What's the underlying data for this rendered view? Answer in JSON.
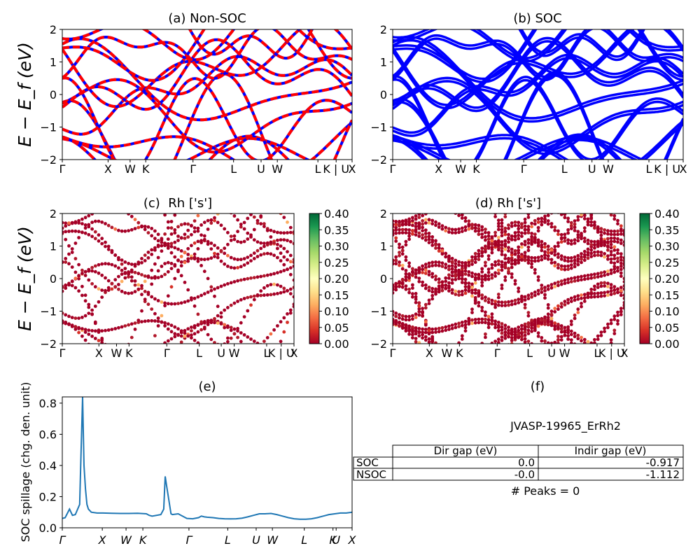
{
  "figure": {
    "ylabel_energy": "E − E_f (eV)",
    "panel_e_ylabel": "SOC spillage (chg. den. unit)",
    "band_yticks": [
      "−2",
      "−1",
      "0",
      "1",
      "2"
    ],
    "kpath_labels": [
      "Γ",
      "X",
      "W",
      "K",
      "Γ",
      "L",
      "U",
      "W",
      "L",
      "K | U",
      "X"
    ],
    "spillage_xtick_labels": [
      "Γ",
      "X",
      "W",
      "K",
      "Γ",
      "L",
      "U",
      "W",
      "L",
      "K",
      "U",
      "X"
    ],
    "spillage_yticks": [
      "0.0",
      "0.2",
      "0.4",
      "0.6",
      "0.8"
    ],
    "colorbar_ticks": [
      "0.00",
      "0.05",
      "0.10",
      "0.15",
      "0.20",
      "0.25",
      "0.30",
      "0.35",
      "0.40"
    ]
  },
  "chart_data": [
    {
      "panel": "a",
      "type": "line",
      "title": "(a) Non-SOC",
      "ylabel": "E − E_f (eV)",
      "ylim": [
        -2,
        2
      ],
      "x_ticks": [
        "Γ",
        "X",
        "W",
        "K",
        "Γ",
        "L",
        "U",
        "W",
        "L",
        "K | U",
        "X"
      ],
      "series_colors": [
        "#0000ff",
        "#ff0000"
      ],
      "style": "blue solid bands overlaid with red dashed bands"
    },
    {
      "panel": "b",
      "type": "line",
      "title": "(b) SOC",
      "ylim": [
        -2,
        2
      ],
      "x_ticks": [
        "Γ",
        "X",
        "W",
        "K",
        "Γ",
        "L",
        "U",
        "W",
        "L",
        "K | U",
        "X"
      ],
      "series_colors": [
        "#0000ff"
      ]
    },
    {
      "panel": "c",
      "type": "scatter",
      "title": "(c)  Rh ['s']",
      "ylabel": "E − E_f (eV)",
      "ylim": [
        -2,
        2
      ],
      "x_ticks": [
        "Γ",
        "X",
        "W",
        "K",
        "Γ",
        "L",
        "U",
        "W",
        "L",
        "K | U",
        "X"
      ],
      "colorbar": {
        "min": 0.0,
        "max": 0.4,
        "colormap": "RdYlGn"
      }
    },
    {
      "panel": "d",
      "type": "scatter",
      "title": "(d) Rh ['s']",
      "ylim": [
        -2,
        2
      ],
      "x_ticks": [
        "Γ",
        "X",
        "W",
        "K",
        "Γ",
        "L",
        "U",
        "W",
        "L",
        "K | U",
        "X"
      ],
      "colorbar": {
        "min": 0.0,
        "max": 0.4,
        "colormap": "RdYlGn"
      }
    },
    {
      "panel": "e",
      "type": "line",
      "title": "(e)",
      "ylabel": "SOC spillage (chg. den. unit)",
      "ylim": [
        0,
        0.84
      ],
      "x_ticks": [
        "Γ",
        "X",
        "W",
        "K",
        "Γ",
        "L",
        "U",
        "W",
        "L",
        "K",
        "U",
        "X"
      ],
      "color": "#1f77b4",
      "x": [
        0,
        0.01,
        0.025,
        0.035,
        0.045,
        0.06,
        0.065,
        0.07,
        0.075,
        0.08,
        0.085,
        0.09,
        0.1,
        0.12,
        0.14,
        0.17,
        0.2,
        0.23,
        0.26,
        0.29,
        0.3,
        0.31,
        0.34,
        0.35,
        0.355,
        0.36,
        0.37,
        0.375,
        0.38,
        0.4,
        0.41,
        0.43,
        0.45,
        0.47,
        0.48,
        0.49,
        0.5,
        0.52,
        0.54,
        0.56,
        0.58,
        0.6,
        0.62,
        0.64,
        0.66,
        0.68,
        0.7,
        0.72,
        0.74,
        0.76,
        0.78,
        0.8,
        0.82,
        0.84,
        0.86,
        0.88,
        0.9,
        0.92,
        0.94,
        0.96,
        0.98,
        1.0
      ],
      "y": [
        0.06,
        0.065,
        0.12,
        0.08,
        0.085,
        0.15,
        0.5,
        0.84,
        0.4,
        0.25,
        0.15,
        0.12,
        0.1,
        0.095,
        0.095,
        0.093,
        0.092,
        0.092,
        0.093,
        0.09,
        0.08,
        0.075,
        0.085,
        0.12,
        0.33,
        0.27,
        0.15,
        0.09,
        0.085,
        0.09,
        0.08,
        0.06,
        0.058,
        0.065,
        0.075,
        0.07,
        0.068,
        0.065,
        0.06,
        0.058,
        0.057,
        0.058,
        0.062,
        0.07,
        0.08,
        0.09,
        0.09,
        0.092,
        0.085,
        0.075,
        0.065,
        0.058,
        0.055,
        0.055,
        0.058,
        0.065,
        0.075,
        0.085,
        0.09,
        0.095,
        0.095,
        0.1
      ]
    },
    {
      "panel": "f",
      "type": "table",
      "title": "(f)",
      "caption": "JVASP-19965_ErRh2",
      "columns": [
        "Dir gap (eV)",
        "Indir gap (eV)"
      ],
      "rows": [
        {
          "label": "SOC",
          "dir_gap": "0.0",
          "indir_gap": "-0.917"
        },
        {
          "label": "NSOC",
          "dir_gap": "-0.0",
          "indir_gap": "-1.112"
        }
      ],
      "footnote": "# Peaks = 0"
    }
  ]
}
